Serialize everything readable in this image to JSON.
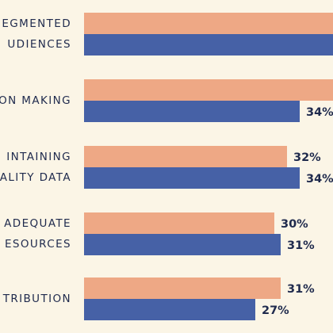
{
  "chart_data": {
    "type": "bar",
    "orientation": "horizontal",
    "groups": [
      {
        "label_lines": [
          "EGMENTED",
          "UDIENCES"
        ],
        "values": [
          null,
          null
        ],
        "value_labels": [
          "",
          ""
        ]
      },
      {
        "label_lines": [
          "ON MAKING"
        ],
        "values": [
          null,
          34
        ],
        "value_labels": [
          "",
          "34%"
        ]
      },
      {
        "label_lines": [
          "INTAINING",
          "ALITY DATA"
        ],
        "values": [
          32,
          34
        ],
        "value_labels": [
          "32%",
          "34%"
        ]
      },
      {
        "label_lines": [
          "ADEQUATE",
          "ESOURCES"
        ],
        "values": [
          30,
          31
        ],
        "value_labels": [
          "30%",
          "31%"
        ]
      },
      {
        "label_lines": [
          "TRIBUTION"
        ],
        "values": [
          31,
          27
        ],
        "value_labels": [
          "31%",
          "27%"
        ]
      }
    ],
    "series_colors": [
      "#eea885",
      "#4661a6"
    ],
    "unit": "%"
  }
}
